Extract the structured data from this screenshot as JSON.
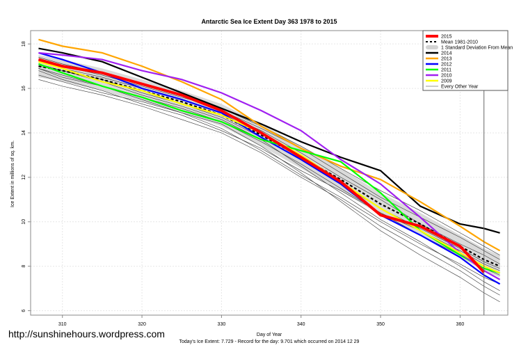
{
  "chart_data": {
    "type": "line",
    "title": "Antarctic Sea Ice Extent Day 363 1978 to 2015",
    "xlabel": "Day of Year",
    "ylabel": "Ice Extent in millions of sq. km.",
    "subtitle": "Today's Ice Extent: 7.729  - Record for the day: 9.701 which occurred on 2014 12 29",
    "xlim": [
      306,
      366
    ],
    "ylim": [
      5.8,
      18.6
    ],
    "xticks": [
      310,
      320,
      330,
      340,
      350,
      360
    ],
    "yticks": [
      6,
      8,
      10,
      12,
      14,
      16,
      18
    ],
    "grid": true,
    "marker_day": 363,
    "legend_position": "top-right",
    "x": [
      307,
      310,
      315,
      320,
      325,
      330,
      335,
      340,
      345,
      350,
      355,
      360,
      363,
      365
    ],
    "mean": {
      "name": "Mean 1981-2010",
      "color": "#000000",
      "values": [
        17.0,
        16.8,
        16.4,
        15.9,
        15.4,
        14.8,
        13.9,
        12.9,
        11.9,
        10.8,
        9.9,
        8.9,
        8.3,
        8.0
      ]
    },
    "std_band": {
      "name": "1 Standard Deviation From Mean",
      "color": "#d3d3d3",
      "half_width": 0.5
    },
    "series": [
      {
        "name": "2014",
        "color": "#000000",
        "values": [
          17.8,
          17.6,
          17.2,
          16.5,
          15.8,
          15.1,
          14.4,
          13.6,
          12.9,
          12.3,
          10.7,
          9.9,
          9.7,
          9.5
        ]
      },
      {
        "name": "2013",
        "color": "#ffa500",
        "values": [
          18.2,
          17.9,
          17.6,
          17.0,
          16.3,
          15.5,
          14.3,
          13.3,
          12.5,
          11.9,
          10.9,
          9.8,
          9.1,
          8.7
        ]
      },
      {
        "name": "2012",
        "color": "#0000ff",
        "values": [
          17.6,
          17.3,
          16.7,
          16.0,
          15.5,
          14.9,
          13.8,
          12.8,
          11.7,
          10.3,
          9.4,
          8.4,
          7.6,
          7.2
        ]
      },
      {
        "name": "2011",
        "color": "#00ff00",
        "values": [
          17.1,
          16.7,
          16.1,
          15.6,
          15.0,
          14.5,
          13.7,
          13.2,
          12.7,
          11.3,
          9.6,
          8.5,
          7.9,
          7.7
        ]
      },
      {
        "name": "2010",
        "color": "#a020f0",
        "values": [
          17.6,
          17.5,
          17.3,
          16.8,
          16.4,
          15.8,
          15.0,
          14.1,
          12.8,
          11.7,
          10.2,
          8.6,
          7.8,
          7.4
        ]
      },
      {
        "name": "2009",
        "color": "#ffff00",
        "values": [
          17.2,
          16.9,
          16.3,
          15.9,
          15.3,
          14.8,
          14.0,
          13.0,
          11.8,
          10.6,
          9.6,
          8.6,
          8.0,
          7.7
        ]
      },
      {
        "name": "2015",
        "color": "#ff0000",
        "values": [
          17.3,
          17.0,
          16.7,
          16.2,
          15.7,
          15.0,
          14.0,
          12.9,
          11.8,
          10.3,
          9.8,
          8.9,
          7.729,
          null
        ]
      }
    ],
    "other_years": {
      "name": "Every Other Year",
      "color": "#333333",
      "series": [
        [
          16.4,
          16.1,
          15.7,
          15.2,
          14.6,
          14.0,
          13.1,
          12.0,
          11.0,
          9.8,
          8.8,
          7.8,
          7.1,
          6.7
        ],
        [
          16.9,
          16.6,
          16.1,
          15.6,
          15.1,
          14.5,
          13.6,
          12.6,
          11.5,
          10.4,
          9.4,
          8.5,
          7.9,
          7.6
        ],
        [
          17.4,
          17.1,
          16.7,
          16.2,
          15.7,
          15.0,
          14.2,
          13.3,
          12.2,
          11.1,
          10.2,
          9.3,
          8.7,
          8.3
        ],
        [
          17.0,
          16.8,
          16.3,
          15.7,
          15.2,
          14.6,
          13.7,
          12.5,
          11.3,
          10.1,
          9.1,
          8.0,
          7.3,
          6.9
        ],
        [
          16.8,
          16.4,
          15.9,
          15.3,
          14.8,
          14.1,
          13.3,
          12.3,
          11.4,
          10.4,
          9.6,
          8.7,
          8.1,
          7.8
        ],
        [
          17.2,
          16.9,
          16.5,
          16.0,
          15.5,
          14.9,
          14.1,
          13.1,
          12.0,
          11.0,
          9.9,
          9.0,
          8.5,
          8.1
        ],
        [
          16.6,
          16.3,
          15.8,
          15.4,
          14.9,
          14.4,
          13.4,
          12.2,
          10.9,
          9.6,
          8.5,
          7.5,
          6.8,
          6.4
        ],
        [
          17.1,
          16.8,
          16.4,
          15.8,
          15.3,
          14.7,
          13.8,
          12.8,
          11.7,
          10.6,
          9.7,
          8.8,
          8.2,
          7.9
        ],
        [
          16.9,
          16.5,
          16.1,
          15.5,
          14.9,
          14.2,
          13.2,
          12.1,
          11.1,
          10.0,
          9.0,
          8.1,
          7.5,
          7.2
        ],
        [
          17.3,
          17.0,
          16.6,
          16.1,
          15.6,
          15.1,
          14.3,
          13.4,
          12.4,
          11.4,
          10.5,
          9.5,
          8.9,
          8.5
        ]
      ]
    }
  },
  "watermark": "http://sunshinehours.wordpress.com"
}
